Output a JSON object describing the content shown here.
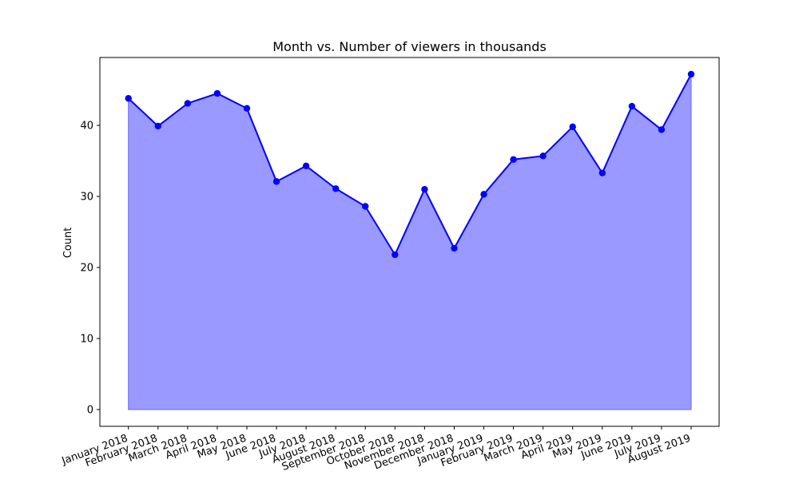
{
  "chart_data": {
    "type": "area",
    "title": "Month vs. Number of viewers in thousands",
    "xlabel": "",
    "ylabel": "Count",
    "categories": [
      "January 2018",
      "February 2018",
      "March 2018",
      "April 2018",
      "May 2018",
      "June 2018",
      "July 2018",
      "August 2018",
      "September 2018",
      "October 2018",
      "November 2018",
      "December 2018",
      "January 2019",
      "February 2019",
      "March 2019",
      "April 2019",
      "May 2019",
      "June 2019",
      "July 2019",
      "August 2019"
    ],
    "series": [
      {
        "values": [
          43.8,
          39.9,
          43.1,
          44.5,
          42.4,
          32.1,
          34.3,
          31.1,
          28.6,
          21.8,
          31.0,
          22.7,
          30.3,
          35.2,
          35.7,
          39.8,
          33.3,
          42.7,
          39.4,
          47.2
        ]
      }
    ],
    "ylim": [
      -2.36,
      49.56
    ],
    "yticks": [
      0,
      10,
      20,
      30,
      40
    ],
    "grid": false,
    "colors": {
      "line": "#0000ff",
      "fill": "#9999ff",
      "fill_edge": "#6666ff",
      "marker": "#0000ff"
    }
  }
}
